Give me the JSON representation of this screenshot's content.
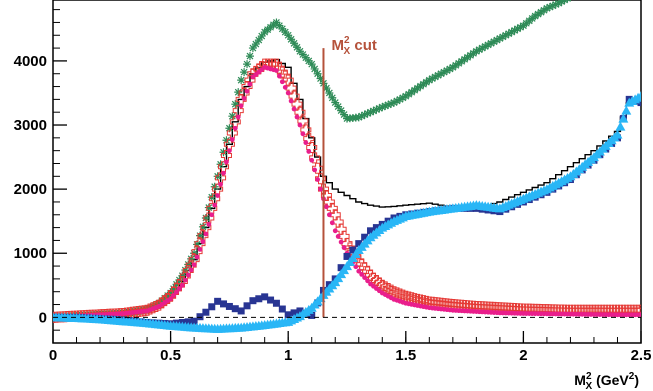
{
  "chart_data": {
    "type": "scatter",
    "title": "",
    "xlabel": "M_X^2 (GeV^2)",
    "xlabel_parts": {
      "main": "M",
      "sup": "2",
      "sub": "X",
      "unit": " (GeV",
      "unit_sup": "2",
      "unit_close": ")"
    },
    "ylabel": "",
    "xlim": [
      0,
      2.5
    ],
    "ylim": [
      -400,
      4950
    ],
    "x_ticks": [
      "0",
      "0.5",
      "1",
      "1.5",
      "2",
      "2.5"
    ],
    "x_tick_values": [
      0,
      0.5,
      1,
      1.5,
      2,
      2.5
    ],
    "y_ticks": [
      "0",
      "1000",
      "2000",
      "3000",
      "4000"
    ],
    "y_tick_values": [
      0,
      1000,
      2000,
      3000,
      4000
    ],
    "grid": false,
    "annotations": [
      {
        "type": "vline",
        "x": 1.15,
        "y_range": [
          0,
          4200
        ],
        "color": "#b5523b",
        "label": "M_X^2 cut",
        "label_parts": {
          "main": "M",
          "sup": "2",
          "sub": "X",
          "rest": " cut"
        }
      },
      {
        "type": "hline",
        "y": 0,
        "style": "dashed",
        "color": "#000000"
      }
    ],
    "series": [
      {
        "marker": "histogram",
        "color": "#000000",
        "x": [
          0,
          0.1,
          0.2,
          0.3,
          0.4,
          0.45,
          0.5,
          0.55,
          0.6,
          0.65,
          0.7,
          0.75,
          0.8,
          0.85,
          0.9,
          0.95,
          1.0,
          1.05,
          1.1,
          1.15,
          1.2,
          1.25,
          1.3,
          1.35,
          1.4,
          1.45,
          1.5,
          1.6,
          1.7,
          1.8,
          1.9,
          2.0,
          2.1,
          2.2,
          2.3,
          2.4,
          2.45,
          2.5
        ],
        "values": [
          -20,
          0,
          20,
          40,
          90,
          180,
          330,
          560,
          900,
          1400,
          2000,
          2700,
          3400,
          3800,
          3980,
          4020,
          3900,
          3400,
          2800,
          2200,
          2000,
          1900,
          1800,
          1750,
          1720,
          1730,
          1750,
          1780,
          1720,
          1700,
          1800,
          1950,
          2100,
          2350,
          2600,
          2900,
          3350,
          3400
        ]
      },
      {
        "marker": "star",
        "color": "#2e8b57",
        "x": [
          0,
          0.1,
          0.2,
          0.3,
          0.4,
          0.45,
          0.5,
          0.55,
          0.6,
          0.65,
          0.7,
          0.75,
          0.8,
          0.85,
          0.9,
          0.95,
          1.0,
          1.05,
          1.1,
          1.15,
          1.2,
          1.25,
          1.3,
          1.35,
          1.4,
          1.45,
          1.5,
          1.6,
          1.7,
          1.8,
          1.9,
          2.0,
          2.05,
          2.1,
          2.15,
          2.2
        ],
        "values": [
          0,
          20,
          40,
          60,
          120,
          220,
          380,
          650,
          1000,
          1550,
          2200,
          2950,
          3700,
          4200,
          4450,
          4600,
          4400,
          4150,
          3950,
          3650,
          3350,
          3100,
          3120,
          3200,
          3280,
          3350,
          3450,
          3700,
          3900,
          4150,
          4350,
          4550,
          4700,
          4820,
          4900,
          5000
        ]
      },
      {
        "marker": "open-cross",
        "color": "#e53935",
        "x": [
          0,
          0.1,
          0.2,
          0.3,
          0.4,
          0.45,
          0.5,
          0.55,
          0.6,
          0.65,
          0.7,
          0.75,
          0.8,
          0.85,
          0.9,
          0.95,
          1.0,
          1.05,
          1.1,
          1.15,
          1.2,
          1.25,
          1.3,
          1.35,
          1.4,
          1.45,
          1.5,
          1.55,
          1.6,
          1.7,
          1.8,
          1.9,
          2.0,
          2.1,
          2.2,
          2.3,
          2.4,
          2.5
        ],
        "values": [
          0,
          20,
          40,
          60,
          110,
          190,
          330,
          560,
          900,
          1400,
          2000,
          2700,
          3400,
          3800,
          3950,
          3950,
          3700,
          3200,
          2650,
          2000,
          1600,
          1150,
          880,
          650,
          500,
          400,
          330,
          280,
          240,
          200,
          170,
          150,
          130,
          120,
          110,
          110,
          110,
          110
        ]
      },
      {
        "marker": "dot",
        "color": "#e91e8c",
        "x": [
          0,
          0.1,
          0.2,
          0.3,
          0.4,
          0.45,
          0.5,
          0.55,
          0.6,
          0.65,
          0.7,
          0.75,
          0.8,
          0.85,
          0.9,
          0.95,
          1.0,
          1.05,
          1.1,
          1.15,
          1.2,
          1.25,
          1.3,
          1.35,
          1.4,
          1.45,
          1.5,
          1.6,
          1.7,
          1.8,
          1.9,
          2.0,
          2.2,
          2.4,
          2.5
        ],
        "values": [
          0,
          20,
          40,
          60,
          100,
          170,
          290,
          500,
          820,
          1300,
          1900,
          2600,
          3300,
          3750,
          3900,
          3850,
          3500,
          3000,
          2450,
          1850,
          1350,
          1000,
          720,
          520,
          380,
          280,
          220,
          150,
          110,
          90,
          70,
          60,
          50,
          40,
          40
        ]
      },
      {
        "marker": "square",
        "color": "#283593",
        "x": [
          0,
          0.1,
          0.2,
          0.3,
          0.4,
          0.5,
          0.6,
          0.65,
          0.7,
          0.75,
          0.8,
          0.85,
          0.9,
          0.95,
          1.0,
          1.05,
          1.1,
          1.15,
          1.2,
          1.25,
          1.3,
          1.35,
          1.4,
          1.45,
          1.5,
          1.6,
          1.7,
          1.8,
          1.9,
          2.0,
          2.1,
          2.2,
          2.3,
          2.4,
          2.45,
          2.5
        ],
        "values": [
          0,
          0,
          -20,
          -40,
          -80,
          -100,
          -60,
          80,
          250,
          170,
          100,
          260,
          320,
          220,
          40,
          100,
          30,
          420,
          600,
          950,
          1150,
          1350,
          1450,
          1550,
          1600,
          1650,
          1700,
          1700,
          1650,
          1800,
          1950,
          2150,
          2450,
          2800,
          3400,
          3350
        ]
      },
      {
        "marker": "triangle",
        "color": "#29b6f6",
        "x": [
          0,
          0.1,
          0.2,
          0.3,
          0.4,
          0.5,
          0.6,
          0.7,
          0.8,
          0.9,
          1.0,
          1.05,
          1.1,
          1.15,
          1.2,
          1.25,
          1.3,
          1.35,
          1.4,
          1.45,
          1.5,
          1.6,
          1.7,
          1.8,
          1.9,
          2.0,
          2.1,
          2.2,
          2.3,
          2.4,
          2.45,
          2.5
        ],
        "values": [
          0,
          -10,
          -30,
          -60,
          -90,
          -130,
          -160,
          -180,
          -160,
          -120,
          -70,
          20,
          150,
          350,
          550,
          800,
          1050,
          1250,
          1400,
          1500,
          1580,
          1650,
          1700,
          1750,
          1700,
          1850,
          2000,
          2200,
          2500,
          2850,
          3350,
          3450
        ]
      }
    ]
  }
}
